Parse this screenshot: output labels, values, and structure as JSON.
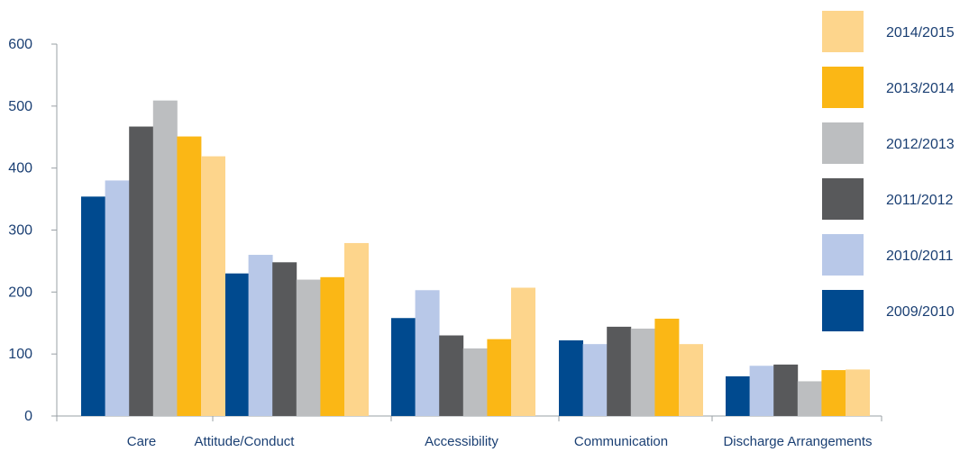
{
  "chart_data": {
    "type": "bar",
    "categories": [
      "Care",
      "Attitude/Conduct",
      "Accessibility",
      "Communication",
      "Discharge Arrangements"
    ],
    "series": [
      {
        "name": "2009/2010",
        "color": "#004a8f",
        "values": [
          354,
          230,
          158,
          122,
          64
        ]
      },
      {
        "name": "2010/2011",
        "color": "#b8c8e8",
        "values": [
          380,
          260,
          203,
          116,
          81
        ]
      },
      {
        "name": "2011/2012",
        "color": "#58595b",
        "values": [
          467,
          248,
          130,
          144,
          83
        ]
      },
      {
        "name": "2012/2013",
        "color": "#bcbec0",
        "values": [
          509,
          220,
          109,
          141,
          56
        ]
      },
      {
        "name": "2013/2014",
        "color": "#fbb715",
        "values": [
          451,
          224,
          124,
          157,
          74
        ]
      },
      {
        "name": "2014/2015",
        "color": "#fdd58c",
        "values": [
          419,
          279,
          207,
          116,
          75
        ]
      }
    ],
    "yticks": [
      0,
      100,
      200,
      300,
      400,
      500,
      600
    ],
    "ylim": [
      0,
      600
    ],
    "grid": false,
    "legend_position": "right",
    "legend_order": [
      "2014/2015",
      "2013/2014",
      "2012/2013",
      "2011/2012",
      "2010/2011",
      "2009/2010"
    ],
    "title": "",
    "xlabel": "",
    "ylabel": ""
  }
}
